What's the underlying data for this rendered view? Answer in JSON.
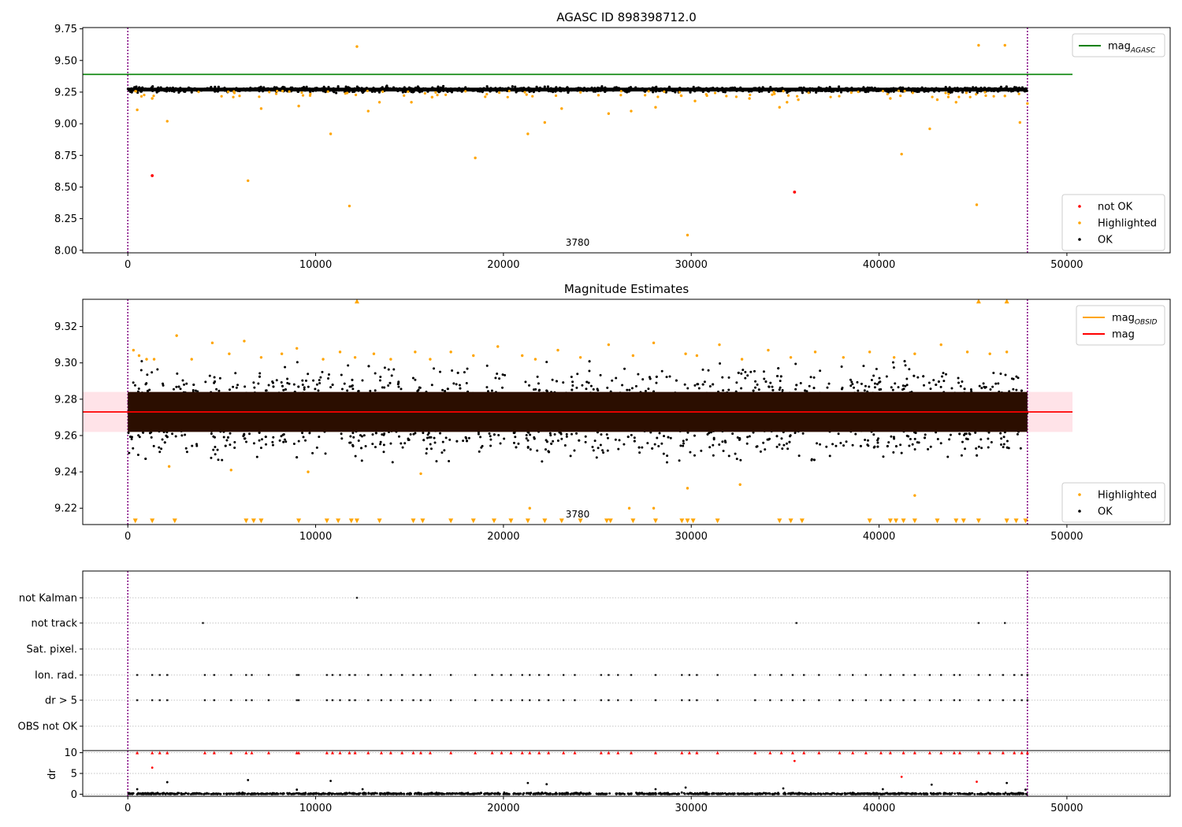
{
  "figure": {
    "title": "AGASC ID 898398712.0"
  },
  "colors": {
    "agasc": "#008000",
    "obsid": "#ffa500",
    "mag": "#ff0000",
    "band": "#ffc0cb",
    "ok": "#000000",
    "highlighted": "#ffa500",
    "not_ok": "#ff0000",
    "vline": "#800080",
    "grid": "#b0b0b0"
  },
  "chart_data": [
    {
      "type": "scatter",
      "title": "",
      "xlim": [
        -2400,
        55500
      ],
      "ylim": [
        7.98,
        9.76
      ],
      "xticks": [
        0,
        10000,
        20000,
        30000,
        40000,
        50000
      ],
      "yticks": [
        8.0,
        8.25,
        8.5,
        8.75,
        9.0,
        9.25,
        9.5,
        9.75
      ],
      "xtick_labels": [
        "0",
        "10000",
        "20000",
        "30000",
        "40000",
        "50000"
      ],
      "ytick_labels": [
        "8.00",
        "8.25",
        "8.50",
        "8.75",
        "9.00",
        "9.25",
        "9.50",
        "9.75"
      ],
      "obsid_boundaries": [
        0,
        47900
      ],
      "annotation": {
        "text": "3780",
        "x": 23900
      },
      "hlines": [
        {
          "name": "magAGASC",
          "y": 9.39,
          "x": [
            -2400,
            50300
          ]
        }
      ],
      "ok_band": {
        "y": [
          9.25,
          9.3
        ],
        "x": [
          0,
          47900
        ]
      },
      "series": [
        {
          "name": "not OK",
          "x": [
            1300,
            35500
          ],
          "y": [
            8.59,
            8.46
          ]
        },
        {
          "name": "Highlighted",
          "x": [
            500,
            1300,
            2100,
            6400,
            7100,
            9100,
            10800,
            11800,
            12200,
            12800,
            13400,
            15100,
            16200,
            18500,
            21300,
            22200,
            23100,
            25600,
            26800,
            28100,
            29800,
            30200,
            33100,
            34700,
            35100,
            35700,
            40600,
            41200,
            42700,
            43100,
            44100,
            45200,
            45300,
            46700,
            46700,
            47500,
            47900
          ],
          "y": [
            9.11,
            9.2,
            9.02,
            8.55,
            9.12,
            9.14,
            8.92,
            8.35,
            9.61,
            9.1,
            9.17,
            9.17,
            9.21,
            8.73,
            8.92,
            9.01,
            9.12,
            9.08,
            9.1,
            9.13,
            8.12,
            9.18,
            9.2,
            9.13,
            9.17,
            9.19,
            9.2,
            8.76,
            8.96,
            9.19,
            9.17,
            8.36,
            9.62,
            9.62,
            9.22,
            9.01,
            9.16
          ]
        },
        {
          "name": "OK",
          "x": [],
          "y": []
        }
      ],
      "legends": [
        {
          "position": "upper-right",
          "items": [
            {
              "label": "mag",
              "sub": "AGASC",
              "kind": "line",
              "color": "#008000"
            }
          ]
        },
        {
          "position": "lower-right",
          "items": [
            {
              "label": "not OK",
              "kind": "dot",
              "color": "#ff0000"
            },
            {
              "label": "Highlighted",
              "kind": "dot",
              "color": "#ffa500"
            },
            {
              "label": "OK",
              "kind": "dot",
              "color": "#000000"
            }
          ]
        }
      ]
    },
    {
      "type": "scatter",
      "title": "Magnitude Estimates",
      "xlim": [
        -2400,
        55500
      ],
      "ylim": [
        9.211,
        9.335
      ],
      "xticks": [
        0,
        10000,
        20000,
        30000,
        40000,
        50000
      ],
      "yticks": [
        9.22,
        9.24,
        9.26,
        9.28,
        9.3,
        9.32
      ],
      "xtick_labels": [
        "0",
        "10000",
        "20000",
        "30000",
        "40000",
        "50000"
      ],
      "ytick_labels": [
        "9.22",
        "9.24",
        "9.26",
        "9.28",
        "9.30",
        "9.32"
      ],
      "obsid_boundaries": [
        0,
        47900
      ],
      "annotation": {
        "text": "3780",
        "x": 23900
      },
      "hlines": [
        {
          "name": "mag",
          "y": 9.273,
          "x": [
            -2400,
            50300
          ]
        }
      ],
      "mag_band": {
        "y": [
          9.262,
          9.284
        ],
        "x": [
          -2400,
          50300
        ]
      },
      "dense_core": {
        "y": [
          9.262,
          9.284
        ],
        "x": [
          0,
          47900
        ]
      },
      "ok_band": {
        "y": [
          9.245,
          9.3
        ],
        "x": [
          0,
          47900
        ]
      },
      "series": [
        {
          "name": "Highlighted",
          "x": [
            300,
            600,
            1000,
            1400,
            2600,
            3400,
            4500,
            5400,
            6200,
            7100,
            8200,
            9000,
            10400,
            11300,
            12100,
            13100,
            14000,
            15300,
            16100,
            17200,
            18400,
            19700,
            21000,
            21700,
            22900,
            24100,
            25600,
            26900,
            28000,
            29700,
            30300,
            31500,
            32700,
            34100,
            35300,
            36600,
            38100,
            39500,
            40800,
            41900,
            43300,
            44700,
            45900,
            46800,
            2200,
            5500,
            9600,
            15600,
            21400,
            26700,
            28000,
            29800,
            32600,
            41900
          ],
          "y": [
            9.307,
            9.304,
            9.302,
            9.302,
            9.315,
            9.302,
            9.311,
            9.305,
            9.312,
            9.303,
            9.305,
            9.308,
            9.302,
            9.306,
            9.303,
            9.305,
            9.302,
            9.306,
            9.302,
            9.306,
            9.304,
            9.309,
            9.304,
            9.302,
            9.307,
            9.303,
            9.31,
            9.304,
            9.311,
            9.305,
            9.304,
            9.31,
            9.302,
            9.307,
            9.303,
            9.306,
            9.303,
            9.306,
            9.303,
            9.305,
            9.31,
            9.306,
            9.305,
            9.306,
            9.243,
            9.241,
            9.24,
            9.239,
            9.22,
            9.22,
            9.22,
            9.231,
            9.233,
            9.227
          ]
        },
        {
          "name": "Highlighted (clipped low)",
          "marker": "triangle-down",
          "y": 9.213,
          "x": [
            400,
            1300,
            2500,
            6300,
            6700,
            7100,
            9100,
            10600,
            11200,
            11900,
            12200,
            13400,
            15200,
            15700,
            17200,
            18400,
            19500,
            20400,
            21300,
            22200,
            23100,
            24100,
            25500,
            25700,
            26900,
            28100,
            29500,
            29800,
            30100,
            31400,
            34700,
            35300,
            35900,
            39500,
            40600,
            40900,
            41300,
            41900,
            43100,
            44100,
            44500,
            45300,
            46800,
            47300,
            47800
          ]
        },
        {
          "name": "Highlighted (clipped high)",
          "marker": "triangle-up",
          "y": 9.334,
          "x": [
            12200,
            45300,
            46800
          ]
        },
        {
          "name": "OK",
          "x": [],
          "y": []
        }
      ],
      "legends": [
        {
          "position": "upper-right",
          "items": [
            {
              "label": "mag",
              "sub": "OBSID",
              "kind": "line",
              "color": "#ffa500"
            },
            {
              "label": "mag",
              "sub": "",
              "kind": "line",
              "color": "#ff0000"
            }
          ]
        },
        {
          "position": "lower-right",
          "items": [
            {
              "label": "Highlighted",
              "kind": "dot",
              "color": "#ffa500"
            },
            {
              "label": "OK",
              "kind": "dot",
              "color": "#000000"
            }
          ]
        }
      ]
    },
    {
      "type": "scatter",
      "title": "",
      "xlim": [
        -2400,
        55500
      ],
      "categories": [
        "not Kalman",
        "not track",
        "Sat. pixel.",
        "Ion. rad.",
        "dr > 5",
        "OBS not OK"
      ],
      "obsid_boundaries": [
        0,
        47900
      ],
      "flags": {
        "not Kalman": [
          12200
        ],
        "not track": [
          4000,
          35600,
          45300,
          46700
        ],
        "Sat. pixel.": [],
        "Ion. rad.": [
          500,
          1300,
          1700,
          2100,
          4100,
          4600,
          5500,
          6300,
          6600,
          7500,
          9000,
          9100,
          10600,
          10900,
          11300,
          11800,
          12100,
          12800,
          13500,
          14000,
          14600,
          15200,
          15600,
          16100,
          17200,
          18500,
          19400,
          19900,
          20400,
          21000,
          21400,
          21900,
          22400,
          23200,
          23800,
          25200,
          25600,
          26100,
          26800,
          28100,
          29500,
          29900,
          30300,
          31400,
          33400,
          34200,
          34800,
          35400,
          36000,
          36800,
          37900,
          38600,
          39300,
          40100,
          40600,
          41300,
          41900,
          42700,
          43300,
          44000,
          44300,
          45300,
          45900,
          46600,
          47200,
          47600,
          47900
        ],
        "dr > 5": [
          500,
          1300,
          1700,
          2100,
          4100,
          4600,
          5500,
          6300,
          6600,
          7500,
          9000,
          9100,
          10600,
          10900,
          11300,
          11800,
          12100,
          12800,
          13500,
          14000,
          14600,
          15200,
          15600,
          16100,
          17200,
          18500,
          19400,
          19900,
          20400,
          21000,
          21400,
          21900,
          22400,
          23200,
          23800,
          25200,
          25600,
          26100,
          26800,
          28100,
          29500,
          29900,
          30300,
          31400,
          33400,
          34200,
          34800,
          35400,
          36000,
          36800,
          37900,
          38600,
          39300,
          40100,
          40600,
          41300,
          41900,
          42700,
          43300,
          44000,
          44300,
          45300,
          45900,
          46600,
          47200,
          47600,
          47900
        ],
        "OBS not OK": []
      }
    },
    {
      "type": "scatter",
      "title": "",
      "ylabel": "dr",
      "xlim": [
        -2400,
        55500
      ],
      "ylim": [
        -0.5,
        10.5
      ],
      "xticks": [
        0,
        10000,
        20000,
        30000,
        40000,
        50000
      ],
      "yticks": [
        0,
        5,
        10
      ],
      "xtick_labels": [
        "0",
        "10000",
        "20000",
        "30000",
        "40000",
        "50000"
      ],
      "ytick_labels": [
        "0",
        "5",
        "10"
      ],
      "obsid_boundaries": [
        0,
        47900
      ],
      "series": [
        {
          "name": "dr (ok)",
          "x": [
            500,
            2100,
            6400,
            9000,
            10800,
            12500,
            21300,
            22300,
            28100,
            29700,
            34900,
            40200,
            42800,
            46800,
            47800
          ],
          "y": [
            1.2,
            2.9,
            3.4,
            1.1,
            3.2,
            1.2,
            2.7,
            2.4,
            1.2,
            1.6,
            1.4,
            1.2,
            2.3,
            2.7,
            1.1
          ]
        },
        {
          "name": "dr (red)",
          "x": [
            1300,
            35500,
            41200,
            45200
          ],
          "y": [
            6.4,
            8.0,
            4.2,
            3.0
          ]
        },
        {
          "name": "dr (clipped high)",
          "marker": "triangle-up",
          "y": 10.0,
          "x": [
            500,
            1300,
            1700,
            2100,
            4100,
            4600,
            5500,
            6300,
            6600,
            7500,
            9000,
            9100,
            10600,
            10900,
            11300,
            11800,
            12100,
            12800,
            13500,
            14000,
            14600,
            15200,
            15600,
            16100,
            17200,
            18500,
            19400,
            19900,
            20400,
            21000,
            21400,
            21900,
            22400,
            23200,
            23800,
            25200,
            25600,
            26100,
            26800,
            28100,
            29500,
            29900,
            30300,
            31400,
            33400,
            34200,
            34800,
            35400,
            36000,
            36800,
            37900,
            38600,
            39300,
            40100,
            40600,
            41300,
            41900,
            42700,
            43300,
            44000,
            44300,
            45300,
            45900,
            46600,
            47200,
            47600,
            47900
          ]
        }
      ]
    }
  ]
}
